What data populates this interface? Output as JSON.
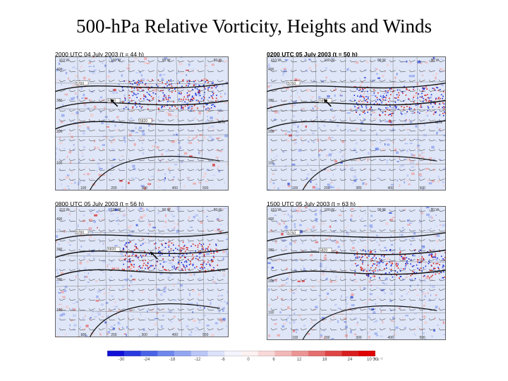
{
  "title": "500-hPa Relative Vorticity, Heights and Winds",
  "panels": [
    {
      "caption": "2000 UTC 04 July 2003 (t = 44 h)",
      "bold": false,
      "top_lon_labels": [
        "110 W",
        "100 W",
        "90 W",
        "80 W"
      ],
      "right_lat_label": "40 N",
      "left_ticks": [
        "400",
        "300",
        "200",
        "100"
      ],
      "bottom_ticks": [
        "100",
        "200",
        "300",
        "400",
        "500"
      ],
      "contour_labels": [
        "5760",
        "5760",
        "5820"
      ]
    },
    {
      "caption": "0200 UTC 05 July 2003 (t = 50 h)",
      "bold": true,
      "top_lon_labels": [
        "110 W",
        "100 W",
        "90 W",
        "80 W"
      ],
      "right_lat_label": "40 N",
      "left_ticks": [
        "400",
        "300",
        "200",
        "100"
      ],
      "bottom_ticks": [
        "100",
        "200",
        "300",
        "400",
        "500"
      ],
      "contour_labels": [
        "5760",
        "5820"
      ]
    },
    {
      "caption": "0800 UTC 05 July 2003 (t = 56 h)",
      "bold": false,
      "top_lon_labels": [
        "110 W",
        "100 W",
        "90 W",
        "80 W"
      ],
      "right_lat_label": "40 N",
      "left_ticks": [
        "400",
        "300",
        "200",
        "100"
      ],
      "bottom_ticks": [
        "100",
        "200",
        "300",
        "400",
        "500"
      ],
      "contour_labels": [
        "5760",
        "5820"
      ]
    },
    {
      "caption": "1500 UTC 05 July 2003 (t = 63 h)",
      "bold": false,
      "top_lon_labels": [
        "110 W",
        "100 W",
        "90 W",
        "80 W"
      ],
      "right_lat_label": "40 N",
      "left_ticks": [
        "400",
        "300",
        "200",
        "100"
      ],
      "bottom_ticks": [
        "100",
        "200",
        "300",
        "400",
        "500"
      ],
      "contour_labels": [
        "5760",
        "5820"
      ]
    }
  ],
  "colorbar": {
    "labels": [
      "-30",
      "-24",
      "-18",
      "-12",
      "-6",
      "0",
      "6",
      "12",
      "18",
      "24",
      "30"
    ],
    "units": "10⁻⁵ s⁻¹",
    "colors": [
      "#1010d8",
      "#2a3ae0",
      "#4a62e6",
      "#6f86ec",
      "#94a6f1",
      "#b9c6f6",
      "#dbe2fa",
      "#f3f4fd",
      "#fdf1f1",
      "#f8d8d8",
      "#f2b8b8",
      "#ec9494",
      "#e56e6e",
      "#de4646",
      "#d81e1e",
      "#e00000"
    ]
  },
  "colors": {
    "background": "#dfe6f7",
    "height_contour": "#111111",
    "borders": "#555555"
  }
}
